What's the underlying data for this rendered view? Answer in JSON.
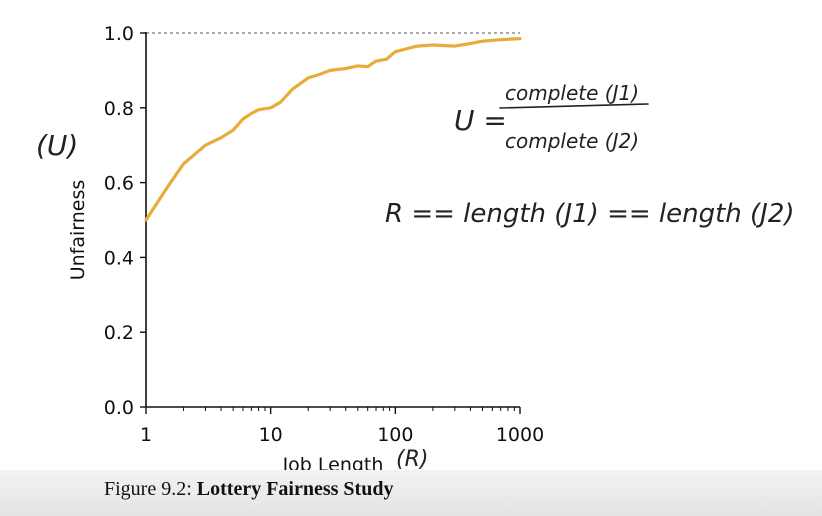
{
  "chart_data": {
    "type": "line",
    "x_scale": "log",
    "xlim": [
      1,
      1000
    ],
    "ylim": [
      0,
      1.0
    ],
    "xlabel": "Job Length",
    "ylabel": "Unfairness",
    "x_ticks": [
      "1",
      "10",
      "100",
      "1000"
    ],
    "y_ticks": [
      "0.0",
      "0.2",
      "0.4",
      "0.6",
      "0.8",
      "1.0"
    ],
    "reference_line": {
      "y": 1.0,
      "style": "dashed"
    },
    "series": [
      {
        "color": "#e8ac3a",
        "points": [
          [
            1,
            0.5
          ],
          [
            1.5,
            0.59
          ],
          [
            2,
            0.65
          ],
          [
            3,
            0.7
          ],
          [
            4,
            0.72
          ],
          [
            5,
            0.74
          ],
          [
            6,
            0.77
          ],
          [
            7,
            0.785
          ],
          [
            8,
            0.795
          ],
          [
            10,
            0.8
          ],
          [
            12,
            0.815
          ],
          [
            15,
            0.85
          ],
          [
            20,
            0.88
          ],
          [
            25,
            0.89
          ],
          [
            30,
            0.9
          ],
          [
            40,
            0.905
          ],
          [
            50,
            0.912
          ],
          [
            60,
            0.91
          ],
          [
            70,
            0.925
          ],
          [
            85,
            0.93
          ],
          [
            100,
            0.95
          ],
          [
            130,
            0.96
          ],
          [
            150,
            0.965
          ],
          [
            200,
            0.968
          ],
          [
            300,
            0.965
          ],
          [
            400,
            0.972
          ],
          [
            500,
            0.978
          ],
          [
            700,
            0.982
          ],
          [
            1000,
            0.985
          ]
        ]
      }
    ]
  },
  "annotations": {
    "y_var": "(U)",
    "x_var": "(R)",
    "formula_lhs": "U =",
    "formula_numerator": "complete (J1)",
    "formula_denominator": "complete (J2)",
    "rule": "R == length (J1) == length (J2)"
  },
  "caption": {
    "label": "Figure 9.2:",
    "title": "Lottery Fairness Study"
  }
}
